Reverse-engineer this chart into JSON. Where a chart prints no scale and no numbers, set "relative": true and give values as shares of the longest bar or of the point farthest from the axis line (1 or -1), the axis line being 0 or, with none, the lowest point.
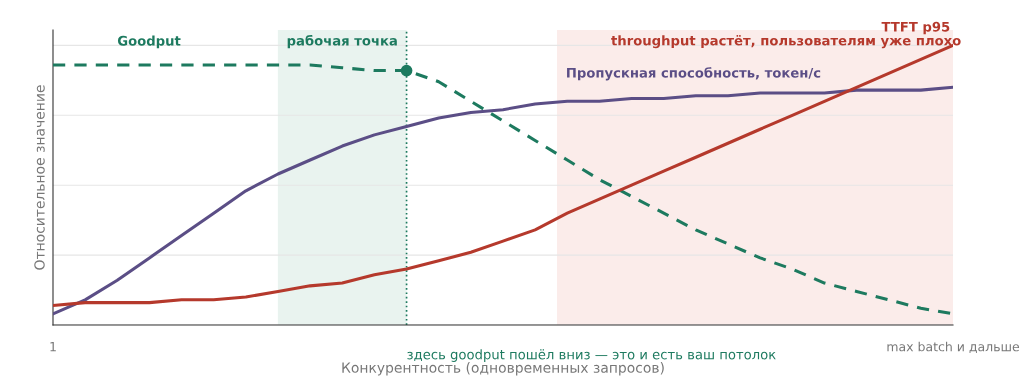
{
  "chart_data": {
    "type": "line",
    "relative": true,
    "xlabel": "Конкурентность (одновременных запросов)",
    "ylabel": "Относительное значение",
    "categories": [
      "1",
      null,
      null,
      null,
      null,
      null,
      null,
      null,
      null,
      null,
      null,
      null,
      null,
      null,
      null,
      null,
      null,
      null,
      null,
      null,
      null,
      null,
      null,
      null,
      null,
      null,
      null,
      null,
      "max batch и дальше"
    ],
    "series": [
      {
        "name": "Goodput",
        "color": "#1d7a5f",
        "line_style": "dashed",
        "values": [
          0.93,
          0.93,
          0.93,
          0.93,
          0.93,
          0.93,
          0.93,
          0.93,
          0.93,
          0.92,
          0.91,
          0.91,
          0.87,
          0.8,
          0.73,
          0.66,
          0.59,
          0.52,
          0.46,
          0.4,
          0.34,
          0.29,
          0.24,
          0.2,
          0.15,
          0.12,
          0.09,
          0.06,
          0.04
        ]
      },
      {
        "name": "Пропускная способность, токен/с",
        "color": "#5b4e86",
        "values": [
          0.04,
          0.09,
          0.16,
          0.24,
          0.32,
          0.4,
          0.48,
          0.54,
          0.59,
          0.64,
          0.68,
          0.71,
          0.74,
          0.76,
          0.77,
          0.79,
          0.8,
          0.8,
          0.81,
          0.81,
          0.82,
          0.82,
          0.83,
          0.83,
          0.83,
          0.84,
          0.84,
          0.84,
          0.85
        ]
      },
      {
        "name": "TTFT p95",
        "color": "#b5392c",
        "values": [
          0.07,
          0.08,
          0.08,
          0.08,
          0.09,
          0.09,
          0.1,
          0.12,
          0.14,
          0.15,
          0.18,
          0.2,
          0.23,
          0.26,
          0.3,
          0.34,
          0.4,
          0.45,
          0.5,
          0.55,
          0.6,
          0.65,
          0.7,
          0.75,
          0.8,
          0.85,
          0.9,
          0.95,
          1.0
        ]
      },
      {
        "type": "scatter",
        "marker": "circle",
        "color": "#1d7a5f",
        "values": [
          null,
          null,
          null,
          null,
          null,
          null,
          null,
          null,
          null,
          null,
          null,
          0.91,
          null,
          null,
          null,
          null,
          null,
          null,
          null,
          null,
          null,
          null,
          null,
          null,
          null,
          null,
          null,
          null,
          null
        ]
      }
    ],
    "annotations": [
      "рабочая точка",
      "throughput растёт, пользователям уже плохо",
      "здесь goodput пошёл вниз — это и есть ваш потолок"
    ],
    "grid": "y",
    "marker": "none",
    "legend": false
  }
}
